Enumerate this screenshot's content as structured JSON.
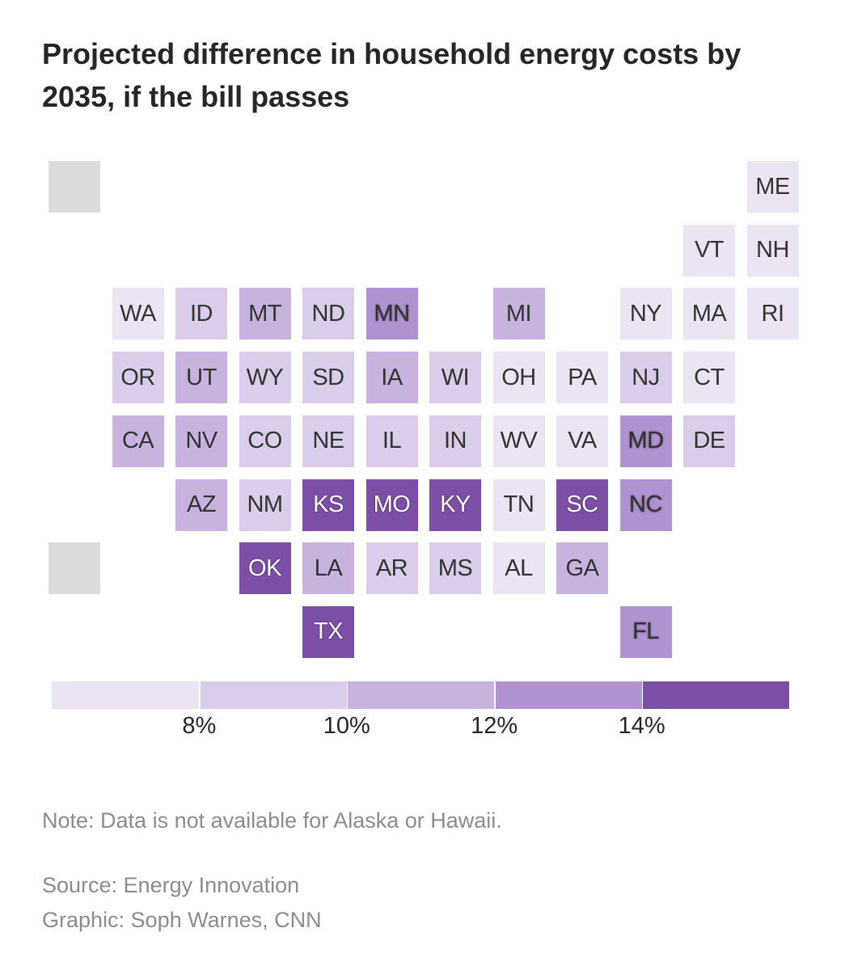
{
  "title": "Projected difference in household energy costs by 2035, if the bill passes",
  "colors": {
    "no_data": "#dcdcdc",
    "bins": [
      "#ebe4f3",
      "#dacde9",
      "#c8b2de",
      "#af92d0",
      "#7c4fa7"
    ]
  },
  "tiles": [
    {
      "state": "AK",
      "label": "",
      "bin": null,
      "col": 0,
      "row": 0
    },
    {
      "state": "ME",
      "label": "ME",
      "bin": 0,
      "col": 11,
      "row": 0
    },
    {
      "state": "VT",
      "label": "VT",
      "bin": 0,
      "col": 10,
      "row": 1
    },
    {
      "state": "NH",
      "label": "NH",
      "bin": 0,
      "col": 11,
      "row": 1
    },
    {
      "state": "WA",
      "label": "WA",
      "bin": 0,
      "col": 1,
      "row": 2
    },
    {
      "state": "ID",
      "label": "ID",
      "bin": 1,
      "col": 2,
      "row": 2
    },
    {
      "state": "MT",
      "label": "MT",
      "bin": 2,
      "col": 3,
      "row": 2
    },
    {
      "state": "ND",
      "label": "ND",
      "bin": 1,
      "col": 4,
      "row": 2
    },
    {
      "state": "MN",
      "label": "MN",
      "bin": 3,
      "col": 5,
      "row": 2
    },
    {
      "state": "MI",
      "label": "MI",
      "bin": 2,
      "col": 7,
      "row": 2
    },
    {
      "state": "NY",
      "label": "NY",
      "bin": 0,
      "col": 9,
      "row": 2
    },
    {
      "state": "MA",
      "label": "MA",
      "bin": 0,
      "col": 10,
      "row": 2
    },
    {
      "state": "RI",
      "label": "RI",
      "bin": 0,
      "col": 11,
      "row": 2
    },
    {
      "state": "OR",
      "label": "OR",
      "bin": 1,
      "col": 1,
      "row": 3
    },
    {
      "state": "UT",
      "label": "UT",
      "bin": 2,
      "col": 2,
      "row": 3
    },
    {
      "state": "WY",
      "label": "WY",
      "bin": 1,
      "col": 3,
      "row": 3
    },
    {
      "state": "SD",
      "label": "SD",
      "bin": 1,
      "col": 4,
      "row": 3
    },
    {
      "state": "IA",
      "label": "IA",
      "bin": 2,
      "col": 5,
      "row": 3
    },
    {
      "state": "WI",
      "label": "WI",
      "bin": 1,
      "col": 6,
      "row": 3
    },
    {
      "state": "OH",
      "label": "OH",
      "bin": 0,
      "col": 7,
      "row": 3
    },
    {
      "state": "PA",
      "label": "PA",
      "bin": 0,
      "col": 8,
      "row": 3
    },
    {
      "state": "NJ",
      "label": "NJ",
      "bin": 1,
      "col": 9,
      "row": 3
    },
    {
      "state": "CT",
      "label": "CT",
      "bin": 0,
      "col": 10,
      "row": 3
    },
    {
      "state": "CA",
      "label": "CA",
      "bin": 2,
      "col": 1,
      "row": 4
    },
    {
      "state": "NV",
      "label": "NV",
      "bin": 2,
      "col": 2,
      "row": 4
    },
    {
      "state": "CO",
      "label": "CO",
      "bin": 1,
      "col": 3,
      "row": 4
    },
    {
      "state": "NE",
      "label": "NE",
      "bin": 1,
      "col": 4,
      "row": 4
    },
    {
      "state": "IL",
      "label": "IL",
      "bin": 1,
      "col": 5,
      "row": 4
    },
    {
      "state": "IN",
      "label": "IN",
      "bin": 1,
      "col": 6,
      "row": 4
    },
    {
      "state": "WV",
      "label": "WV",
      "bin": 0,
      "col": 7,
      "row": 4
    },
    {
      "state": "VA",
      "label": "VA",
      "bin": 0,
      "col": 8,
      "row": 4
    },
    {
      "state": "MD",
      "label": "MD",
      "bin": 3,
      "col": 9,
      "row": 4
    },
    {
      "state": "DE",
      "label": "DE",
      "bin": 1,
      "col": 10,
      "row": 4
    },
    {
      "state": "AZ",
      "label": "AZ",
      "bin": 2,
      "col": 2,
      "row": 5
    },
    {
      "state": "NM",
      "label": "NM",
      "bin": 1,
      "col": 3,
      "row": 5
    },
    {
      "state": "KS",
      "label": "KS",
      "bin": 4,
      "col": 4,
      "row": 5
    },
    {
      "state": "MO",
      "label": "MO",
      "bin": 4,
      "col": 5,
      "row": 5
    },
    {
      "state": "KY",
      "label": "KY",
      "bin": 4,
      "col": 6,
      "row": 5
    },
    {
      "state": "TN",
      "label": "TN",
      "bin": 0,
      "col": 7,
      "row": 5
    },
    {
      "state": "SC",
      "label": "SC",
      "bin": 4,
      "col": 8,
      "row": 5
    },
    {
      "state": "NC",
      "label": "NC",
      "bin": 3,
      "col": 9,
      "row": 5
    },
    {
      "state": "HI",
      "label": "",
      "bin": null,
      "col": 0,
      "row": 6
    },
    {
      "state": "OK",
      "label": "OK",
      "bin": 4,
      "col": 3,
      "row": 6
    },
    {
      "state": "LA",
      "label": "LA",
      "bin": 2,
      "col": 4,
      "row": 6
    },
    {
      "state": "AR",
      "label": "AR",
      "bin": 1,
      "col": 5,
      "row": 6
    },
    {
      "state": "MS",
      "label": "MS",
      "bin": 1,
      "col": 6,
      "row": 6
    },
    {
      "state": "AL",
      "label": "AL",
      "bin": 0,
      "col": 7,
      "row": 6
    },
    {
      "state": "GA",
      "label": "GA",
      "bin": 2,
      "col": 8,
      "row": 6
    },
    {
      "state": "TX",
      "label": "TX",
      "bin": 4,
      "col": 4,
      "row": 7
    },
    {
      "state": "FL",
      "label": "FL",
      "bin": 3,
      "col": 9,
      "row": 7
    }
  ],
  "legend": {
    "tick_labels": [
      "8%",
      "10%",
      "12%",
      "14%"
    ]
  },
  "note": "Note: Data is not available for Alaska or Hawaii.",
  "source": "Source: Energy Innovation",
  "credit": "Graphic: Soph Warnes, CNN"
}
